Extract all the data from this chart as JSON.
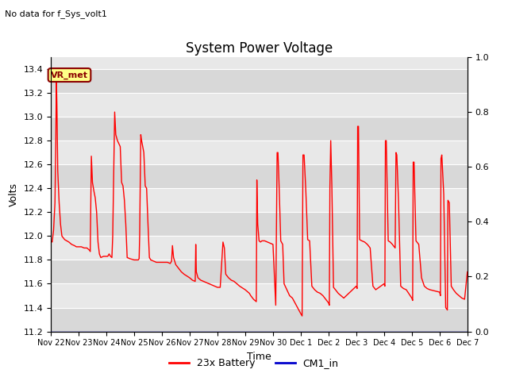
{
  "title": "System Power Voltage",
  "top_left_text": "No data for f_Sys_volt1",
  "xlabel": "Time",
  "ylabel": "Volts",
  "ylim_left": [
    11.2,
    13.5
  ],
  "ylim_right": [
    0.0,
    1.0
  ],
  "yticks_left": [
    11.2,
    11.4,
    11.6,
    11.8,
    12.0,
    12.2,
    12.4,
    12.6,
    12.8,
    13.0,
    13.2,
    13.4
  ],
  "yticks_right": [
    0.0,
    0.2,
    0.4,
    0.6,
    0.8,
    1.0
  ],
  "xtick_labels": [
    "Nov 22",
    "Nov 23",
    "Nov 24",
    "Nov 25",
    "Nov 26",
    "Nov 27",
    "Nov 28",
    "Nov 29",
    "Nov 30",
    "Dec 1",
    "Dec 2",
    "Dec 3",
    "Dec 4",
    "Dec 5",
    "Dec 6",
    "Dec 7"
  ],
  "background_color": "#ffffff",
  "plot_bg_color": "#e8e8e8",
  "grid_color": "#ffffff",
  "line_color_battery": "#ff0000",
  "line_color_cm1": "#0000cc",
  "line_width": 1.0,
  "annotation_text": "VR_met",
  "legend_labels": [
    "23x Battery",
    "CM1_in"
  ],
  "legend_colors": [
    "#ff0000",
    "#0000cc"
  ],
  "battery_data": [
    [
      0.0,
      11.96
    ],
    [
      0.05,
      11.95
    ],
    [
      0.1,
      12.05
    ],
    [
      0.15,
      12.28
    ],
    [
      0.18,
      12.8
    ],
    [
      0.2,
      13.33
    ],
    [
      0.22,
      13.1
    ],
    [
      0.25,
      12.55
    ],
    [
      0.3,
      12.28
    ],
    [
      0.35,
      12.1
    ],
    [
      0.4,
      12.0
    ],
    [
      0.5,
      11.97
    ],
    [
      0.65,
      11.95
    ],
    [
      0.75,
      11.93
    ],
    [
      0.85,
      11.92
    ],
    [
      0.92,
      11.91
    ],
    [
      1.0,
      11.91
    ],
    [
      1.1,
      11.91
    ],
    [
      1.2,
      11.9
    ],
    [
      1.3,
      11.9
    ],
    [
      1.4,
      11.88
    ],
    [
      1.42,
      11.87
    ],
    [
      1.44,
      12.25
    ],
    [
      1.46,
      12.67
    ],
    [
      1.5,
      12.45
    ],
    [
      1.55,
      12.38
    ],
    [
      1.6,
      12.32
    ],
    [
      1.65,
      12.2
    ],
    [
      1.7,
      11.95
    ],
    [
      1.75,
      11.85
    ],
    [
      1.8,
      11.82
    ],
    [
      1.9,
      11.83
    ],
    [
      2.0,
      11.83
    ],
    [
      2.05,
      11.83
    ],
    [
      2.1,
      11.85
    ],
    [
      2.15,
      11.83
    ],
    [
      2.2,
      11.82
    ],
    [
      2.23,
      12.0
    ],
    [
      2.26,
      12.44
    ],
    [
      2.28,
      12.75
    ],
    [
      2.3,
      13.04
    ],
    [
      2.34,
      12.85
    ],
    [
      2.4,
      12.8
    ],
    [
      2.5,
      12.75
    ],
    [
      2.55,
      12.45
    ],
    [
      2.6,
      12.42
    ],
    [
      2.65,
      12.3
    ],
    [
      2.7,
      12.1
    ],
    [
      2.75,
      11.82
    ],
    [
      2.85,
      11.81
    ],
    [
      3.0,
      11.8
    ],
    [
      3.1,
      11.8
    ],
    [
      3.15,
      11.8
    ],
    [
      3.18,
      11.81
    ],
    [
      3.2,
      12.0
    ],
    [
      3.22,
      12.45
    ],
    [
      3.24,
      12.85
    ],
    [
      3.27,
      12.8
    ],
    [
      3.35,
      12.7
    ],
    [
      3.4,
      12.42
    ],
    [
      3.45,
      12.4
    ],
    [
      3.5,
      12.1
    ],
    [
      3.55,
      11.82
    ],
    [
      3.6,
      11.8
    ],
    [
      3.7,
      11.79
    ],
    [
      3.8,
      11.78
    ],
    [
      4.0,
      11.78
    ],
    [
      4.1,
      11.78
    ],
    [
      4.2,
      11.78
    ],
    [
      4.3,
      11.77
    ],
    [
      4.35,
      11.79
    ],
    [
      4.38,
      11.92
    ],
    [
      4.42,
      11.82
    ],
    [
      4.5,
      11.76
    ],
    [
      4.6,
      11.73
    ],
    [
      4.7,
      11.7
    ],
    [
      4.8,
      11.68
    ],
    [
      5.0,
      11.65
    ],
    [
      5.1,
      11.63
    ],
    [
      5.2,
      11.62
    ],
    [
      5.22,
      11.93
    ],
    [
      5.24,
      11.7
    ],
    [
      5.3,
      11.65
    ],
    [
      5.4,
      11.63
    ],
    [
      5.5,
      11.62
    ],
    [
      5.6,
      11.61
    ],
    [
      5.7,
      11.6
    ],
    [
      5.8,
      11.59
    ],
    [
      6.0,
      11.57
    ],
    [
      6.1,
      11.57
    ],
    [
      6.2,
      11.95
    ],
    [
      6.25,
      11.9
    ],
    [
      6.3,
      11.68
    ],
    [
      6.4,
      11.65
    ],
    [
      6.5,
      11.63
    ],
    [
      6.6,
      11.62
    ],
    [
      6.7,
      11.6
    ],
    [
      6.8,
      11.58
    ],
    [
      7.0,
      11.55
    ],
    [
      7.1,
      11.53
    ],
    [
      7.15,
      11.52
    ],
    [
      7.2,
      11.5
    ],
    [
      7.3,
      11.47
    ],
    [
      7.4,
      11.45
    ],
    [
      7.42,
      12.47
    ],
    [
      7.45,
      12.1
    ],
    [
      7.5,
      11.96
    ],
    [
      7.55,
      11.95
    ],
    [
      7.6,
      11.96
    ],
    [
      7.65,
      11.96
    ],
    [
      7.7,
      11.96
    ],
    [
      7.8,
      11.95
    ],
    [
      7.9,
      11.94
    ],
    [
      8.0,
      11.93
    ],
    [
      8.1,
      11.42
    ],
    [
      8.15,
      12.7
    ],
    [
      8.18,
      12.7
    ],
    [
      8.22,
      12.43
    ],
    [
      8.28,
      11.96
    ],
    [
      8.35,
      11.93
    ],
    [
      8.4,
      11.6
    ],
    [
      8.5,
      11.55
    ],
    [
      8.6,
      11.5
    ],
    [
      8.7,
      11.48
    ],
    [
      9.0,
      11.35
    ],
    [
      9.05,
      11.33
    ],
    [
      9.08,
      12.68
    ],
    [
      9.12,
      12.68
    ],
    [
      9.18,
      12.4
    ],
    [
      9.25,
      11.97
    ],
    [
      9.32,
      11.96
    ],
    [
      9.4,
      11.58
    ],
    [
      9.5,
      11.55
    ],
    [
      9.6,
      11.53
    ],
    [
      9.7,
      11.52
    ],
    [
      9.8,
      11.5
    ],
    [
      10.0,
      11.44
    ],
    [
      10.03,
      11.42
    ],
    [
      10.05,
      12.41
    ],
    [
      10.08,
      12.8
    ],
    [
      10.12,
      12.43
    ],
    [
      10.18,
      11.57
    ],
    [
      10.25,
      11.55
    ],
    [
      10.35,
      11.52
    ],
    [
      10.45,
      11.5
    ],
    [
      10.55,
      11.48
    ],
    [
      11.0,
      11.58
    ],
    [
      11.03,
      11.56
    ],
    [
      11.05,
      12.92
    ],
    [
      11.08,
      12.92
    ],
    [
      11.12,
      11.97
    ],
    [
      11.2,
      11.96
    ],
    [
      11.3,
      11.95
    ],
    [
      11.4,
      11.93
    ],
    [
      11.5,
      11.9
    ],
    [
      11.6,
      11.58
    ],
    [
      11.7,
      11.55
    ],
    [
      12.0,
      11.6
    ],
    [
      12.03,
      11.58
    ],
    [
      12.05,
      12.8
    ],
    [
      12.08,
      12.8
    ],
    [
      12.15,
      11.96
    ],
    [
      12.22,
      11.95
    ],
    [
      12.3,
      11.93
    ],
    [
      12.4,
      11.9
    ],
    [
      12.43,
      12.7
    ],
    [
      12.46,
      12.68
    ],
    [
      12.52,
      12.3
    ],
    [
      12.6,
      11.58
    ],
    [
      12.7,
      11.56
    ],
    [
      12.8,
      11.55
    ],
    [
      13.0,
      11.48
    ],
    [
      13.03,
      11.46
    ],
    [
      13.05,
      12.62
    ],
    [
      13.08,
      12.62
    ],
    [
      13.15,
      11.96
    ],
    [
      13.25,
      11.93
    ],
    [
      13.35,
      11.65
    ],
    [
      13.45,
      11.58
    ],
    [
      13.55,
      11.56
    ],
    [
      13.65,
      11.55
    ],
    [
      14.0,
      11.53
    ],
    [
      14.03,
      11.5
    ],
    [
      14.05,
      12.65
    ],
    [
      14.08,
      12.68
    ],
    [
      14.15,
      12.35
    ],
    [
      14.22,
      11.4
    ],
    [
      14.28,
      11.38
    ],
    [
      14.3,
      12.3
    ],
    [
      14.35,
      12.28
    ],
    [
      14.42,
      11.58
    ],
    [
      14.5,
      11.55
    ],
    [
      14.6,
      11.52
    ],
    [
      14.7,
      11.5
    ],
    [
      14.8,
      11.48
    ],
    [
      14.9,
      11.47
    ],
    [
      15.0,
      11.7
    ]
  ]
}
